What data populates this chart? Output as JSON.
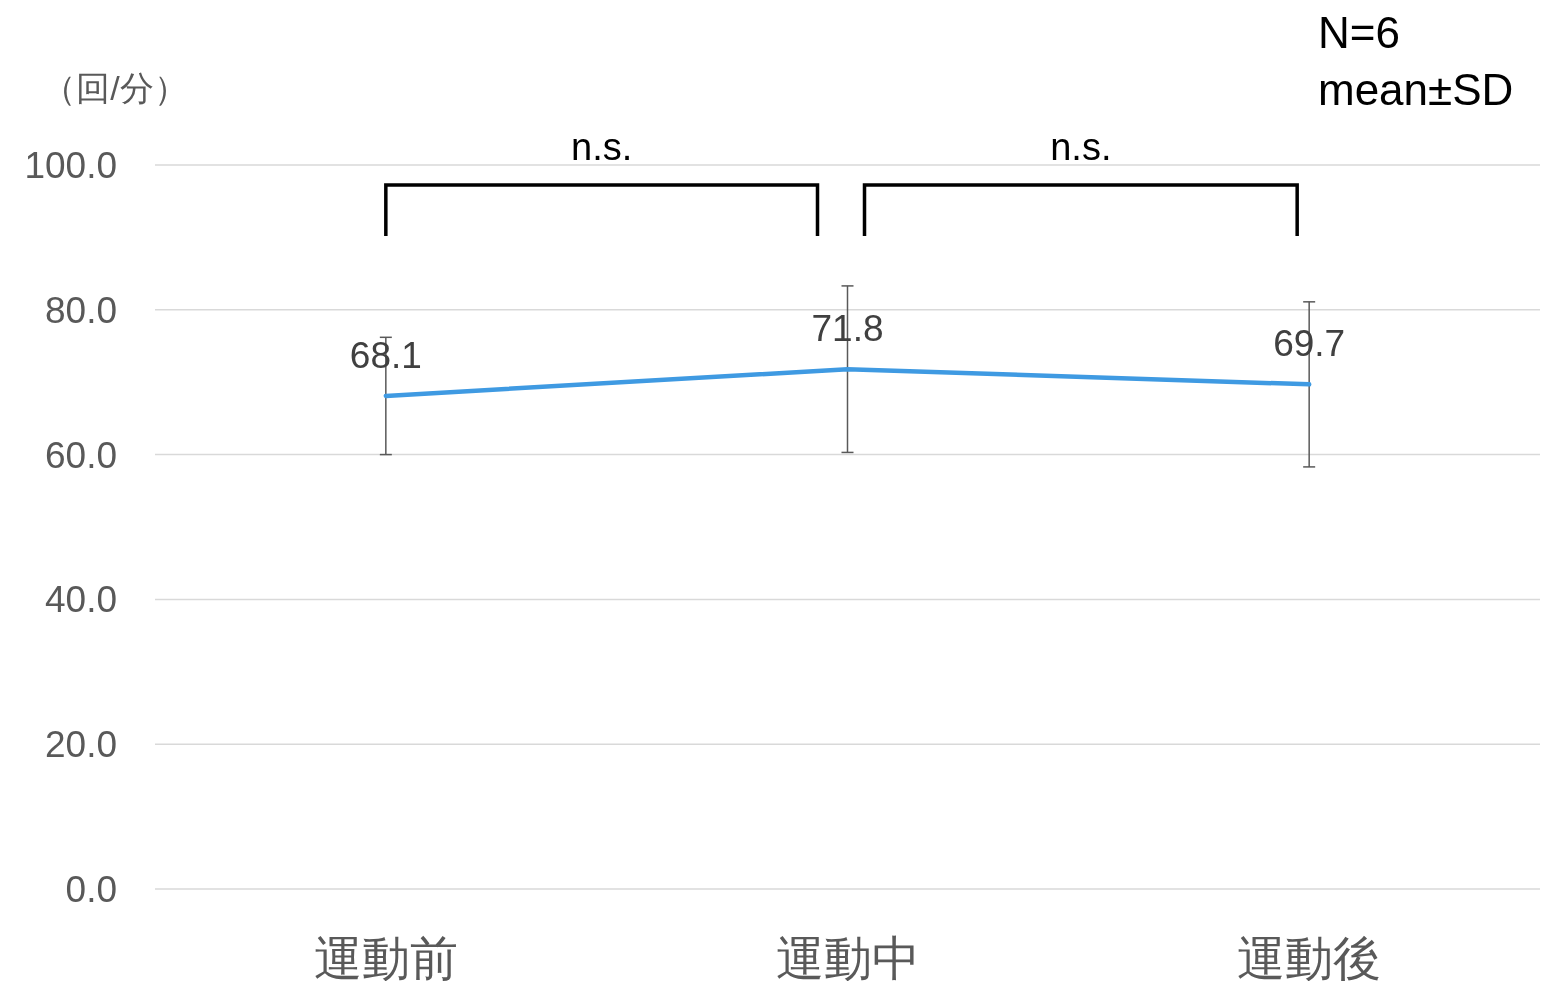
{
  "chart_data": {
    "type": "line",
    "ylabel": "（回/分）",
    "categories": [
      "運動前",
      "運動中",
      "運動後"
    ],
    "series": [
      {
        "color": "#3f9ae2",
        "values": [
          68.1,
          71.8,
          69.7
        ],
        "errors": [
          8.1,
          11.5,
          11.4
        ]
      }
    ],
    "ylim": [
      0,
      100
    ],
    "yticks": [
      {
        "value": 0,
        "label": "0.0"
      },
      {
        "value": 20,
        "label": "20.0"
      },
      {
        "value": 40,
        "label": "40.0"
      },
      {
        "value": 60,
        "label": "60.0"
      },
      {
        "value": 80,
        "label": "80.0"
      },
      {
        "value": 100,
        "label": "100.0"
      }
    ],
    "grid": "y",
    "marker": "none",
    "line_style": "solid",
    "data_labels": true,
    "annotations": [
      "n.s.",
      "n.s.",
      "N=6",
      "mean±SD"
    ]
  }
}
